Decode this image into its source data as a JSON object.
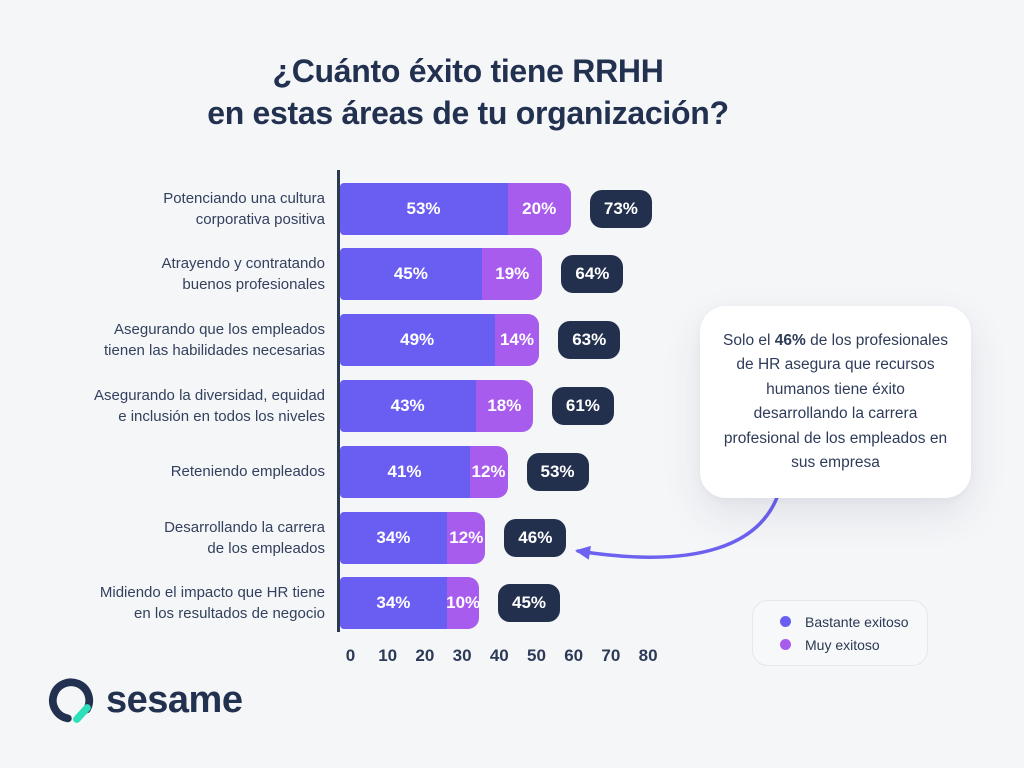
{
  "title": {
    "line1": "¿Cuánto éxito tiene RRHH",
    "line2": "en estas áreas de tu organización?"
  },
  "chart_data": {
    "type": "bar",
    "orientation": "horizontal",
    "stacked": true,
    "categories": [
      "Potenciando una cultura\ncorporativa positiva",
      "Atrayendo y contratando\nbuenos profesionales",
      "Asegurando que los empleados\ntienen las habilidades necesarias",
      "Asegurando la diversidad, equidad\ne inclusión en todos los niveles",
      "Reteniendo empleados",
      "Desarrollando la carrera\nde los empleados",
      "Midiendo el impacto que HR tiene\nen los resultados de negocio"
    ],
    "series": [
      {
        "name": "Bastante exitoso",
        "color": "#6A5EF2",
        "values": [
          53,
          45,
          49,
          43,
          41,
          34,
          34
        ]
      },
      {
        "name": "Muy exitoso",
        "color": "#A75CEE",
        "values": [
          20,
          19,
          14,
          18,
          12,
          12,
          10
        ]
      }
    ],
    "totals": [
      73,
      64,
      63,
      61,
      53,
      46,
      45
    ],
    "value_suffix": "%",
    "x_ticks": [
      0,
      10,
      20,
      30,
      40,
      50,
      60,
      70,
      80
    ],
    "xlim": [
      0,
      80
    ],
    "grid": false,
    "legend_position": "bottom-right"
  },
  "callout": {
    "prefix": "Solo el ",
    "highlight": "46%",
    "suffix": " de los profesionales de HR asegura que recursos humanos tiene éxito desarrollando la carrera profesional de los empleados en sus empresa"
  },
  "logo": {
    "text": "sesame"
  },
  "colors": {
    "background": "#F5F6F8",
    "navy": "#22304E",
    "title_text": "#233150",
    "label_text": "#33415E",
    "bar_primary": "#6A5EF2",
    "bar_secondary": "#A75CEE",
    "arrow": "#6D61F0",
    "logo_teal": "#2EE0B9",
    "callout_bg": "#FFFFFF",
    "legend_border": "#E5E8EE"
  }
}
